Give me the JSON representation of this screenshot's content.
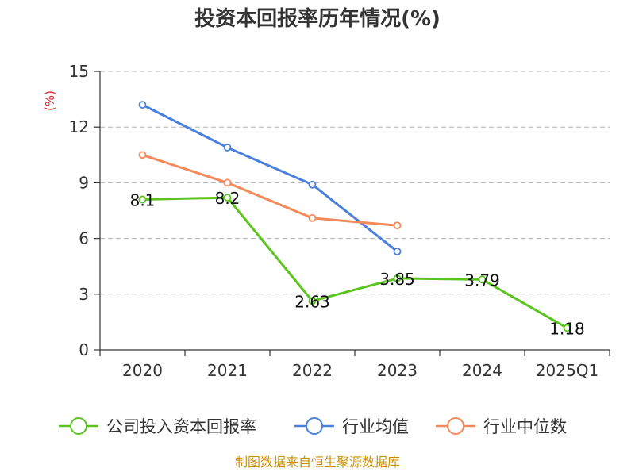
{
  "chart_data": {
    "type": "line",
    "title": "投资本回报率历年情况(%)",
    "ylabel": "(%)",
    "categories": [
      "2020",
      "2021",
      "2022",
      "2023",
      "2024",
      "2025Q1"
    ],
    "yticks": [
      "0",
      "3",
      "6",
      "9",
      "12",
      "15"
    ],
    "ylim": [
      0,
      15
    ],
    "grid": "horizontal-dashed",
    "legend_position": "bottom",
    "series": [
      {
        "name": "公司投入资本回报率",
        "color": "#5cc41e",
        "values": [
          8.1,
          8.2,
          2.63,
          3.85,
          3.79,
          1.18
        ],
        "labels": [
          "8.1",
          "8.2",
          "2.63",
          "3.85",
          "3.79",
          "1.18"
        ]
      },
      {
        "name": "行业均值",
        "color": "#4a7fdc",
        "values": [
          13.2,
          10.9,
          8.9,
          5.3,
          null,
          null
        ]
      },
      {
        "name": "行业中位数",
        "color": "#f5895a",
        "values": [
          10.5,
          9.0,
          7.1,
          6.7,
          null,
          null
        ]
      }
    ],
    "source": "制图数据来自恒生聚源数据库"
  }
}
